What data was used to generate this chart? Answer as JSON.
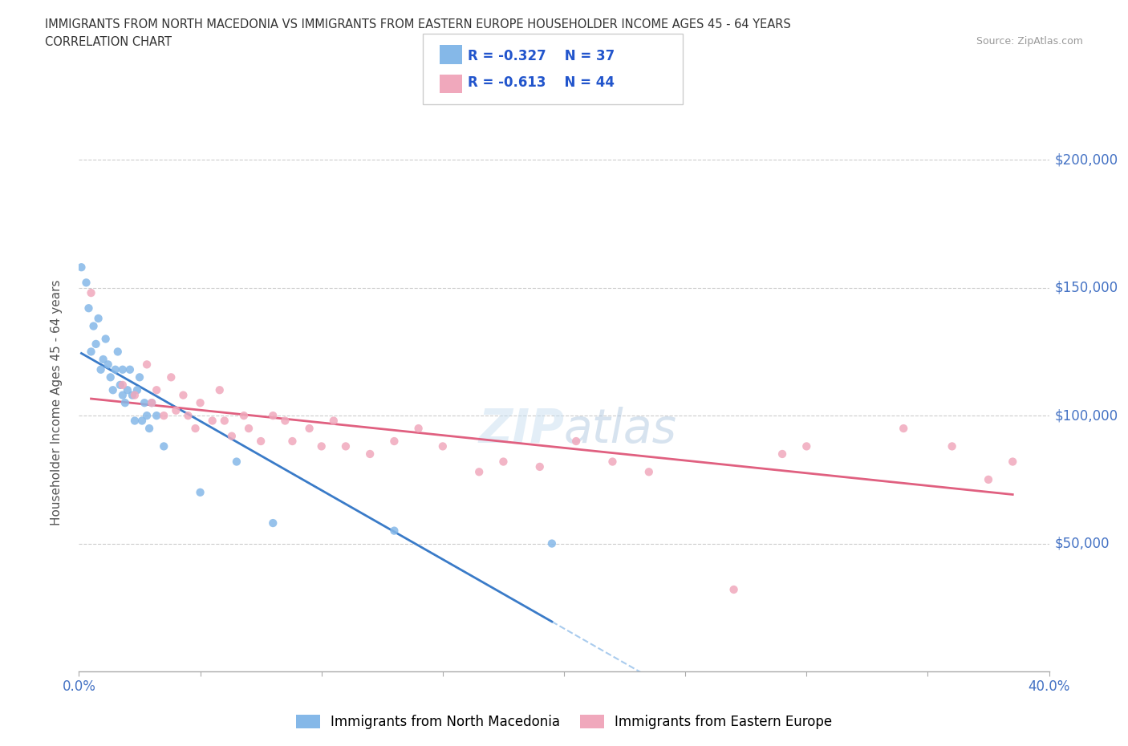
{
  "title_line1": "IMMIGRANTS FROM NORTH MACEDONIA VS IMMIGRANTS FROM EASTERN EUROPE HOUSEHOLDER INCOME AGES 45 - 64 YEARS",
  "title_line2": "CORRELATION CHART",
  "source_text": "Source: ZipAtlas.com",
  "ylabel": "Householder Income Ages 45 - 64 years",
  "xlim": [
    0.0,
    0.4
  ],
  "ylim": [
    0,
    210000
  ],
  "xticks": [
    0.0,
    0.05,
    0.1,
    0.15,
    0.2,
    0.25,
    0.3,
    0.35,
    0.4
  ],
  "ytick_positions": [
    0,
    50000,
    100000,
    150000,
    200000
  ],
  "series1_label": "Immigrants from North Macedonia",
  "series1_color": "#85b8e8",
  "series1_line_color": "#3a7bc8",
  "series2_label": "Immigrants from Eastern Europe",
  "series2_color": "#f0a8bc",
  "series2_line_color": "#e06080",
  "legend_R1": "R = -0.327",
  "legend_N1": "N = 37",
  "legend_R2": "R = -0.613",
  "legend_N2": "N = 44",
  "watermark": "ZIPatlas",
  "background_color": "#ffffff",
  "grid_color": "#cccccc",
  "series1_x": [
    0.001,
    0.003,
    0.004,
    0.005,
    0.006,
    0.007,
    0.008,
    0.009,
    0.01,
    0.011,
    0.012,
    0.013,
    0.014,
    0.015,
    0.016,
    0.017,
    0.018,
    0.018,
    0.019,
    0.02,
    0.021,
    0.022,
    0.023,
    0.024,
    0.025,
    0.026,
    0.027,
    0.028,
    0.029,
    0.03,
    0.032,
    0.035,
    0.05,
    0.065,
    0.08,
    0.13,
    0.195
  ],
  "series1_y": [
    158000,
    152000,
    142000,
    125000,
    135000,
    128000,
    138000,
    118000,
    122000,
    130000,
    120000,
    115000,
    110000,
    118000,
    125000,
    112000,
    108000,
    118000,
    105000,
    110000,
    118000,
    108000,
    98000,
    110000,
    115000,
    98000,
    105000,
    100000,
    95000,
    105000,
    100000,
    88000,
    70000,
    82000,
    58000,
    55000,
    50000
  ],
  "series2_x": [
    0.005,
    0.018,
    0.023,
    0.028,
    0.03,
    0.032,
    0.035,
    0.038,
    0.04,
    0.043,
    0.045,
    0.048,
    0.05,
    0.055,
    0.058,
    0.06,
    0.063,
    0.068,
    0.07,
    0.075,
    0.08,
    0.085,
    0.088,
    0.095,
    0.1,
    0.105,
    0.11,
    0.12,
    0.13,
    0.14,
    0.15,
    0.165,
    0.175,
    0.19,
    0.205,
    0.22,
    0.235,
    0.27,
    0.29,
    0.3,
    0.34,
    0.36,
    0.375,
    0.385
  ],
  "series2_y": [
    148000,
    112000,
    108000,
    120000,
    105000,
    110000,
    100000,
    115000,
    102000,
    108000,
    100000,
    95000,
    105000,
    98000,
    110000,
    98000,
    92000,
    100000,
    95000,
    90000,
    100000,
    98000,
    90000,
    95000,
    88000,
    98000,
    88000,
    85000,
    90000,
    95000,
    88000,
    78000,
    82000,
    80000,
    90000,
    82000,
    78000,
    32000,
    85000,
    88000,
    95000,
    88000,
    75000,
    82000
  ]
}
